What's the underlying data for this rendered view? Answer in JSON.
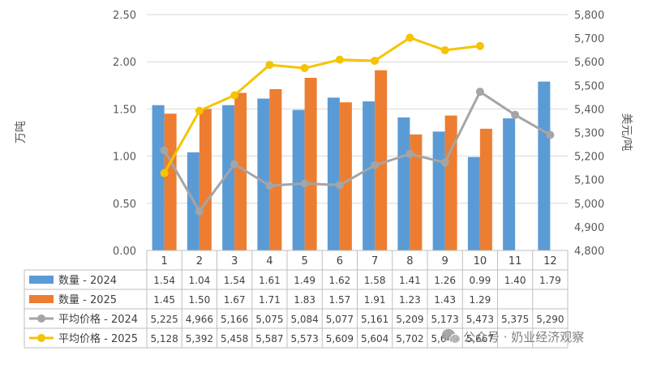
{
  "chart_data": {
    "type": "bar",
    "categories": [
      "1",
      "2",
      "3",
      "4",
      "5",
      "6",
      "7",
      "8",
      "9",
      "10",
      "11",
      "12"
    ],
    "y_left": {
      "label": "万吨",
      "ticks": [
        "0.00",
        "0.50",
        "1.00",
        "1.50",
        "2.00",
        "2.50"
      ],
      "ylim": [
        0,
        2.5
      ]
    },
    "y_right": {
      "label": "美元/吨",
      "ticks": [
        "4,800",
        "4,900",
        "5,000",
        "5,100",
        "5,200",
        "5,300",
        "5,400",
        "5,500",
        "5,600",
        "5,700",
        "5,800"
      ],
      "ylim": [
        4800,
        5800
      ]
    },
    "series": [
      {
        "name": "数量 - 2024",
        "type": "bar",
        "axis": "left",
        "color": "#5B9BD5",
        "values": [
          1.54,
          1.04,
          1.54,
          1.61,
          1.49,
          1.62,
          1.58,
          1.41,
          1.26,
          0.99,
          1.4,
          1.79
        ],
        "labels": [
          "1.54",
          "1.04",
          "1.54",
          "1.61",
          "1.49",
          "1.62",
          "1.58",
          "1.41",
          "1.26",
          "0.99",
          "1.40",
          "1.79"
        ]
      },
      {
        "name": "数量 - 2025",
        "type": "bar",
        "axis": "left",
        "color": "#ED7D31",
        "values": [
          1.45,
          1.5,
          1.67,
          1.71,
          1.83,
          1.57,
          1.91,
          1.23,
          1.43,
          1.29,
          null,
          null
        ],
        "labels": [
          "1.45",
          "1.50",
          "1.67",
          "1.71",
          "1.83",
          "1.57",
          "1.91",
          "1.23",
          "1.43",
          "1.29",
          "",
          ""
        ]
      },
      {
        "name": "平均价格 - 2024",
        "type": "line",
        "axis": "right",
        "color": "#A5A5A5",
        "values": [
          5225,
          4966,
          5166,
          5075,
          5084,
          5077,
          5161,
          5209,
          5173,
          5473,
          5375,
          5290
        ],
        "labels": [
          "5,225",
          "4,966",
          "5,166",
          "5,075",
          "5,084",
          "5,077",
          "5,161",
          "5,209",
          "5,173",
          "5,473",
          "5,375",
          "5,290"
        ]
      },
      {
        "name": "平均价格 - 2025",
        "type": "line",
        "axis": "right",
        "color": "#F5C400",
        "values": [
          5128,
          5392,
          5458,
          5587,
          5573,
          5609,
          5604,
          5702,
          5649,
          5667,
          null,
          null
        ],
        "labels": [
          "5,128",
          "5,392",
          "5,458",
          "5,587",
          "5,573",
          "5,609",
          "5,604",
          "5,702",
          "5,649",
          "5,667",
          "",
          ""
        ]
      }
    ],
    "grid": true,
    "legend": "data-table"
  },
  "watermark": {
    "icon": "wechat-icon",
    "text": "公众号 · 奶业经济观察"
  }
}
